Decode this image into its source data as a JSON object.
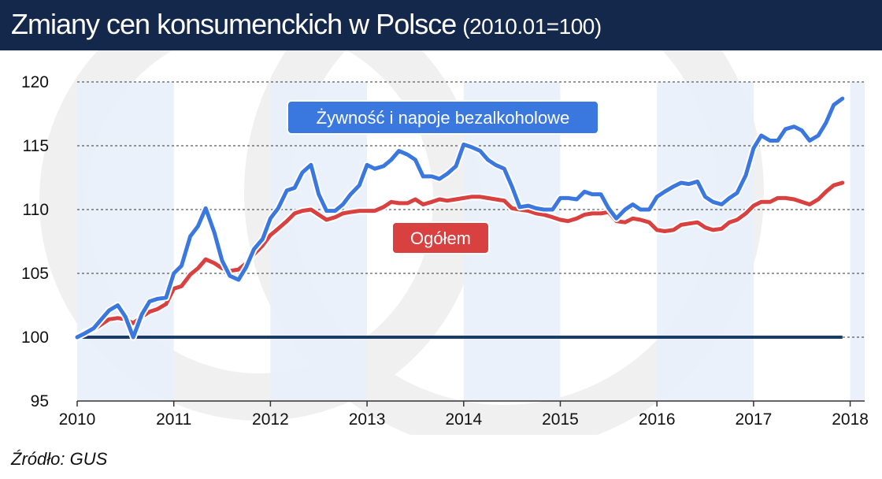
{
  "title": "Zmiany cen konsumenckich w Polsce",
  "subtitle": "(2010.01=100)",
  "source": "Źródło: GUS",
  "colors": {
    "header_bg": "#14284b",
    "food_line": "#3a78e0",
    "total_line": "#d94040",
    "baseline": "#1c3c66",
    "band": "#e9f0f9"
  },
  "chart_data": {
    "type": "line",
    "title": "Zmiany cen konsumenckich w Polsce (2010.01=100)",
    "xlabel": "",
    "ylabel": "",
    "ylim": [
      95,
      120
    ],
    "xlim": [
      2010,
      2018.15
    ],
    "yticks": [
      95,
      100,
      105,
      110,
      115,
      120
    ],
    "xticks": [
      2010,
      2011,
      2012,
      2013,
      2014,
      2015,
      2016,
      2017,
      2018
    ],
    "grid": "horizontal-dashed",
    "baseline": 100,
    "series": [
      {
        "name": "Żywność i napoje bezalkoholowe",
        "x": [
          2010.0,
          2010.08,
          2010.17,
          2010.25,
          2010.33,
          2010.42,
          2010.5,
          2010.58,
          2010.67,
          2010.75,
          2010.83,
          2010.92,
          2011.0,
          2011.08,
          2011.17,
          2011.25,
          2011.33,
          2011.42,
          2011.5,
          2011.58,
          2011.67,
          2011.75,
          2011.83,
          2011.92,
          2012.0,
          2012.08,
          2012.17,
          2012.25,
          2012.33,
          2012.42,
          2012.5,
          2012.58,
          2012.67,
          2012.75,
          2012.83,
          2012.92,
          2013.0,
          2013.08,
          2013.17,
          2013.25,
          2013.33,
          2013.42,
          2013.5,
          2013.58,
          2013.67,
          2013.75,
          2013.83,
          2013.92,
          2014.0,
          2014.08,
          2014.17,
          2014.25,
          2014.33,
          2014.42,
          2014.5,
          2014.58,
          2014.67,
          2014.75,
          2014.83,
          2014.92,
          2015.0,
          2015.08,
          2015.17,
          2015.25,
          2015.33,
          2015.42,
          2015.5,
          2015.58,
          2015.67,
          2015.75,
          2015.83,
          2015.92,
          2016.0,
          2016.08,
          2016.17,
          2016.25,
          2016.33,
          2016.42,
          2016.5,
          2016.58,
          2016.67,
          2016.75,
          2016.83,
          2016.92,
          2017.0,
          2017.08,
          2017.17,
          2017.25,
          2017.33,
          2017.42,
          2017.5,
          2017.58,
          2017.67,
          2017.75,
          2017.83,
          2017.92
        ],
        "values": [
          100.0,
          100.3,
          100.7,
          101.4,
          102.1,
          102.5,
          101.6,
          100.0,
          101.8,
          102.8,
          103.0,
          103.1,
          105.0,
          105.6,
          107.9,
          108.7,
          110.1,
          108.2,
          106.0,
          104.8,
          104.5,
          105.5,
          106.9,
          107.7,
          109.3,
          110.1,
          111.5,
          111.7,
          112.9,
          113.5,
          111.2,
          109.9,
          109.9,
          110.4,
          111.2,
          111.9,
          113.5,
          113.2,
          113.4,
          113.9,
          114.6,
          114.3,
          113.9,
          112.6,
          112.6,
          112.4,
          112.8,
          113.4,
          115.1,
          114.9,
          114.6,
          113.9,
          113.5,
          113.2,
          111.8,
          110.2,
          110.3,
          110.1,
          110.0,
          110.0,
          110.9,
          110.9,
          110.8,
          111.4,
          111.2,
          111.2,
          110.1,
          109.3,
          110.0,
          110.4,
          110.0,
          110.0,
          111.0,
          111.4,
          111.8,
          112.1,
          112.0,
          112.2,
          111.0,
          110.6,
          110.4,
          110.9,
          111.3,
          112.7,
          114.8,
          115.8,
          115.4,
          115.4,
          116.3,
          116.5,
          116.2,
          115.4,
          115.8,
          116.8,
          118.2,
          118.7
        ]
      },
      {
        "name": "Ogółem",
        "x": [
          2010.0,
          2010.08,
          2010.17,
          2010.25,
          2010.33,
          2010.42,
          2010.5,
          2010.58,
          2010.67,
          2010.75,
          2010.83,
          2010.92,
          2011.0,
          2011.08,
          2011.17,
          2011.25,
          2011.33,
          2011.42,
          2011.5,
          2011.58,
          2011.67,
          2011.75,
          2011.83,
          2011.92,
          2012.0,
          2012.08,
          2012.17,
          2012.25,
          2012.33,
          2012.42,
          2012.5,
          2012.58,
          2012.67,
          2012.75,
          2012.83,
          2012.92,
          2013.0,
          2013.08,
          2013.17,
          2013.25,
          2013.33,
          2013.42,
          2013.5,
          2013.58,
          2013.67,
          2013.75,
          2013.83,
          2013.92,
          2014.0,
          2014.08,
          2014.17,
          2014.25,
          2014.33,
          2014.42,
          2014.5,
          2014.58,
          2014.67,
          2014.75,
          2014.83,
          2014.92,
          2015.0,
          2015.08,
          2015.17,
          2015.25,
          2015.33,
          2015.42,
          2015.5,
          2015.58,
          2015.67,
          2015.75,
          2015.83,
          2015.92,
          2016.0,
          2016.08,
          2016.17,
          2016.25,
          2016.33,
          2016.42,
          2016.5,
          2016.58,
          2016.67,
          2016.75,
          2016.83,
          2016.92,
          2017.0,
          2017.08,
          2017.17,
          2017.25,
          2017.33,
          2017.42,
          2017.5,
          2017.58,
          2017.67,
          2017.75,
          2017.83,
          2017.92
        ],
        "values": [
          100.0,
          100.4,
          100.6,
          101.0,
          101.4,
          101.5,
          101.4,
          101.1,
          101.6,
          102.0,
          102.2,
          102.6,
          103.8,
          104.0,
          104.9,
          105.4,
          106.1,
          105.8,
          105.4,
          105.2,
          105.3,
          105.8,
          106.5,
          107.2,
          108.0,
          108.5,
          109.1,
          109.7,
          109.9,
          110.0,
          109.6,
          109.2,
          109.4,
          109.7,
          109.8,
          109.9,
          109.9,
          109.9,
          110.2,
          110.6,
          110.5,
          110.5,
          110.8,
          110.4,
          110.6,
          110.8,
          110.7,
          110.8,
          110.9,
          111.0,
          111.0,
          110.9,
          110.8,
          110.7,
          110.1,
          110.0,
          109.9,
          109.7,
          109.6,
          109.4,
          109.2,
          109.1,
          109.3,
          109.6,
          109.7,
          109.7,
          109.8,
          109.1,
          109.0,
          109.3,
          109.2,
          109.0,
          108.4,
          108.3,
          108.4,
          108.8,
          108.9,
          109.0,
          108.6,
          108.4,
          108.5,
          109.0,
          109.2,
          109.7,
          110.3,
          110.6,
          110.6,
          110.9,
          110.9,
          110.8,
          110.6,
          110.4,
          110.8,
          111.4,
          111.9,
          112.1
        ]
      }
    ],
    "series_labels": [
      "Żywność i napoje bezalkoholowe",
      "Ogółem"
    ]
  }
}
